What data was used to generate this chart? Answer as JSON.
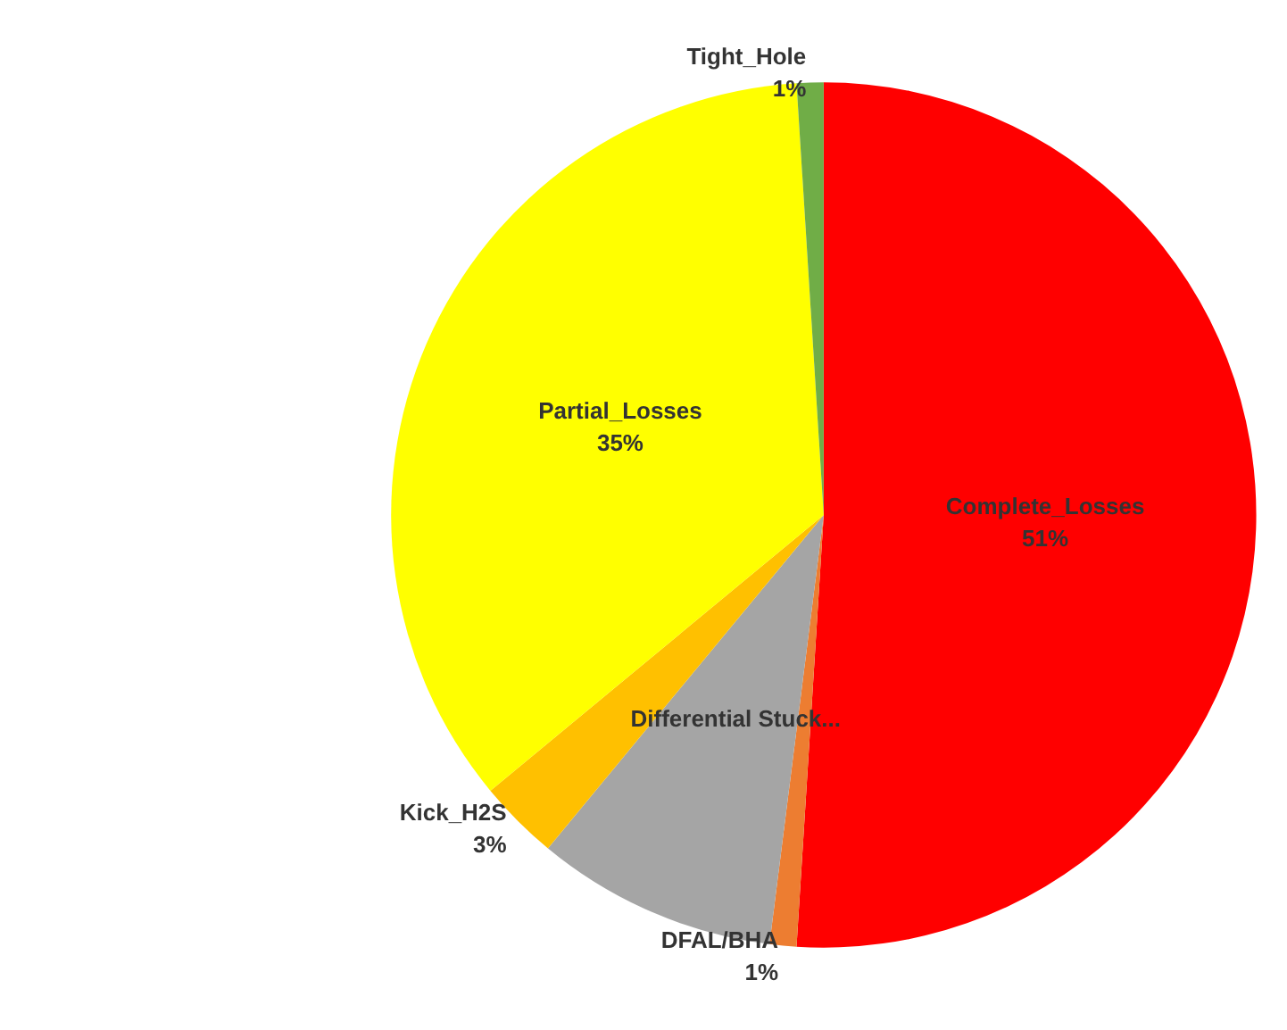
{
  "chart_data": {
    "type": "pie",
    "categories": [
      "Complete_Losses",
      "DFAL/BHA",
      "Differential Stuck...",
      "Kick_H2S",
      "Partial_Losses",
      "Tight_Hole"
    ],
    "values": [
      51,
      1,
      9,
      3,
      35,
      1
    ],
    "value_labels": [
      "51%",
      "1%",
      null,
      "3%",
      "35%",
      "1%"
    ],
    "colors": [
      "#ff0000",
      "#ed7d31",
      "#a5a5a5",
      "#ffc000",
      "#ffff00",
      "#70ad47"
    ],
    "legend": false
  }
}
